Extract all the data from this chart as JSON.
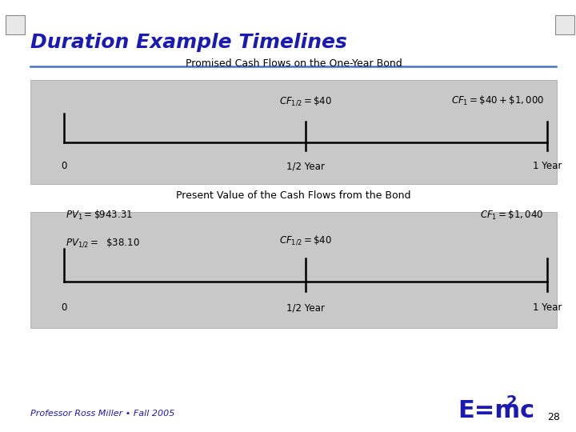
{
  "title": "Duration Example Timelines",
  "title_color": "#1A1AB4",
  "title_fontsize": 18,
  "bg_color": "#FFFFFF",
  "separator_color": "#4472C4",
  "footer_left": "Professor Ross Miller • Fall 2005",
  "footer_page": "28",
  "panel1_title": "Promised Cash Flows on the One-Year Bond",
  "panel1_cf_half": "$CF_{1/2} = \\$40$",
  "panel1_cf_1": "$CF_1 = \\$40 + \\$1,000$",
  "panel1_label_0": "0",
  "panel1_label_half": "1/2 Year",
  "panel1_label_1": "1 Year",
  "panel2_title": "Present Value of the Cash Flows from the Bond",
  "panel2_pv1": "$PV_1 = \\$943.31$",
  "panel2_pv_half": "$PV_{1/2} =\\ \\ \\$38.10$",
  "panel2_cf_half": "$CF_{1/2} = \\$40$",
  "panel2_cf_1": "$CF_1 = \\$1,040$",
  "panel2_label_0": "0",
  "panel2_label_half": "1/2 Year",
  "panel2_label_1": "1 Year",
  "panel_bg": "#C8C8C8",
  "panel_edge": "#AAAAAA"
}
